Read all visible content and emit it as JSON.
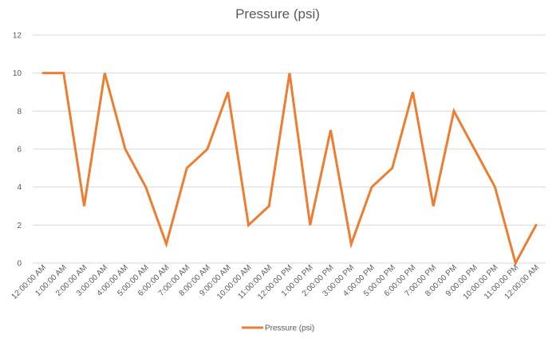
{
  "chart_data": {
    "type": "line",
    "title": "Pressure (psi)",
    "categories": [
      "12:00:00 AM",
      "1:00:00 AM",
      "2:00:00 AM",
      "3:00:00 AM",
      "4:00:00 AM",
      "5:00:00 AM",
      "6:00:00 AM",
      "7:00:00 AM",
      "8:00:00 AM",
      "9:00:00 AM",
      "10:00:00 AM",
      "11:00:00 AM",
      "12:00:00 PM",
      "1:00:00 PM",
      "2:00:00 PM",
      "3:00:00 PM",
      "4:00:00 PM",
      "5:00:00 PM",
      "6:00:00 PM",
      "7:00:00 PM",
      "8:00:00 PM",
      "9:00:00 PM",
      "10:00:00 PM",
      "11:00:00 PM",
      "12:00:00 AM"
    ],
    "series": [
      {
        "name": "Pressure (psi)",
        "color": "#ED7D31",
        "values": [
          10,
          10,
          3,
          10,
          6,
          4,
          1,
          5,
          6,
          9,
          2,
          3,
          10,
          2,
          7,
          1,
          4,
          5,
          9,
          3,
          8,
          6,
          4,
          0,
          2
        ]
      }
    ],
    "y_ticks": [
      "0",
      "2",
      "4",
      "6",
      "8",
      "10",
      "12"
    ],
    "ylim": [
      0,
      12
    ],
    "grid": true,
    "legend_position": "bottom"
  }
}
